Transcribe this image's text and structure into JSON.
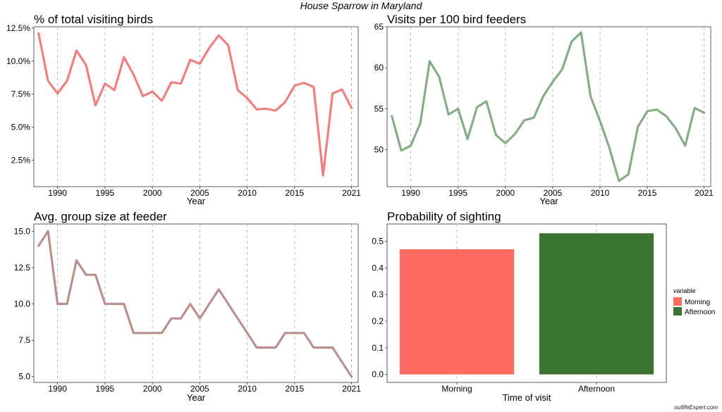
{
  "figure": {
    "title": "House Sparrow in Maryland",
    "credit": "outlifeExpert.com"
  },
  "chart_data": [
    {
      "type": "line",
      "title": "% of total visiting birds",
      "xlabel": "Year",
      "ylabel": "",
      "color": "#f08080",
      "xlim": [
        1987.5,
        2021.7
      ],
      "ylim": [
        0.5,
        12.6
      ],
      "x_ticks": [
        1990,
        1995,
        2000,
        2005,
        2010,
        2015,
        2021
      ],
      "y_ticks": [
        2.5,
        5.0,
        7.5,
        10.0,
        12.5
      ],
      "y_tick_labels": [
        "2.5%",
        "5.0%",
        "7.5%",
        "10.0%",
        "12.5%"
      ],
      "grid": "vertical dashed",
      "x": [
        1988,
        1989,
        1990,
        1991,
        1992,
        1993,
        1994,
        1995,
        1996,
        1997,
        1998,
        1999,
        2000,
        2001,
        2002,
        2003,
        2004,
        2005,
        2006,
        2007,
        2008,
        2009,
        2010,
        2011,
        2012,
        2013,
        2014,
        2015,
        2016,
        2017,
        2018,
        2019,
        2020,
        2021
      ],
      "values": [
        12.1,
        8.5,
        7.55,
        8.5,
        10.8,
        9.7,
        6.65,
        8.3,
        7.8,
        10.3,
        9.0,
        7.35,
        7.7,
        7.0,
        8.4,
        8.3,
        10.1,
        9.8,
        11.0,
        11.95,
        11.2,
        7.8,
        7.2,
        6.35,
        6.4,
        6.25,
        6.9,
        8.15,
        8.35,
        8.05,
        1.35,
        7.55,
        7.85,
        6.45
      ]
    },
    {
      "type": "line",
      "title": "Visits per 100 bird feeders",
      "xlabel": "Year",
      "ylabel": "",
      "color": "#86ad86",
      "xlim": [
        1987.5,
        2021.7
      ],
      "ylim": [
        45.5,
        65.0
      ],
      "x_ticks": [
        1990,
        1995,
        2000,
        2005,
        2010,
        2015,
        2021
      ],
      "y_ticks": [
        50,
        55,
        60,
        65
      ],
      "y_tick_labels": [
        "50",
        "55",
        "60",
        "65"
      ],
      "grid": "vertical dashed",
      "x": [
        1988,
        1989,
        1990,
        1991,
        1992,
        1993,
        1994,
        1995,
        1996,
        1997,
        1998,
        1999,
        2000,
        2001,
        2002,
        2003,
        2004,
        2005,
        2006,
        2007,
        2008,
        2009,
        2010,
        2011,
        2012,
        2013,
        2014,
        2015,
        2016,
        2017,
        2018,
        2019,
        2020,
        2021
      ],
      "values": [
        54.1,
        49.9,
        50.5,
        53.2,
        60.8,
        58.9,
        54.3,
        55.0,
        51.3,
        55.2,
        55.9,
        51.8,
        50.8,
        51.9,
        53.6,
        53.9,
        56.5,
        58.3,
        59.8,
        63.2,
        64.3,
        56.5,
        53.5,
        50.2,
        46.2,
        47.0,
        52.8,
        54.7,
        54.9,
        54.1,
        52.6,
        50.5,
        55.1,
        54.5
      ]
    },
    {
      "type": "line",
      "title": "Avg. group size at feeder",
      "xlabel": "Year",
      "ylabel": "",
      "color": "#bc8f8f",
      "xlim": [
        1987.5,
        2021.7
      ],
      "ylim": [
        4.6,
        15.5
      ],
      "x_ticks": [
        1990,
        1995,
        2000,
        2005,
        2010,
        2015,
        2021
      ],
      "y_ticks": [
        5.0,
        7.5,
        10.0,
        12.5,
        15.0
      ],
      "y_tick_labels": [
        "5.0",
        "7.5",
        "10.0",
        "12.5",
        "15.0"
      ],
      "grid": "vertical dashed",
      "x": [
        1988,
        1989,
        1990,
        1991,
        1992,
        1993,
        1994,
        1995,
        1996,
        1997,
        1998,
        1999,
        2000,
        2001,
        2002,
        2003,
        2004,
        2005,
        2006,
        2007,
        2008,
        2009,
        2010,
        2011,
        2012,
        2013,
        2014,
        2015,
        2016,
        2017,
        2018,
        2019,
        2020,
        2021
      ],
      "values": [
        14,
        15,
        10,
        10,
        13,
        12,
        12,
        10,
        10,
        10,
        8,
        8,
        8,
        8,
        9,
        9,
        10,
        9,
        10,
        11,
        10,
        9,
        8,
        7,
        7,
        7,
        8,
        8,
        8,
        7,
        7,
        7,
        6,
        5
      ]
    },
    {
      "type": "bar",
      "title": "Probability of sighting",
      "xlabel": "Time of visit",
      "ylabel": "",
      "categories": [
        "Morning",
        "Afternoon"
      ],
      "values": [
        0.47,
        0.53
      ],
      "colors": [
        "#ff6b5e",
        "#3a7430"
      ],
      "ylim": [
        -0.03,
        0.565
      ],
      "y_ticks": [
        0.0,
        0.1,
        0.2,
        0.3,
        0.4,
        0.5
      ],
      "y_tick_labels": [
        "0.0",
        "0.1",
        "0.2",
        "0.3",
        "0.4",
        "0.5"
      ],
      "grid": "vertical dashed",
      "legend": {
        "title": "variable",
        "position": "right",
        "items": [
          "Morning",
          "Afternoon"
        ]
      }
    }
  ]
}
